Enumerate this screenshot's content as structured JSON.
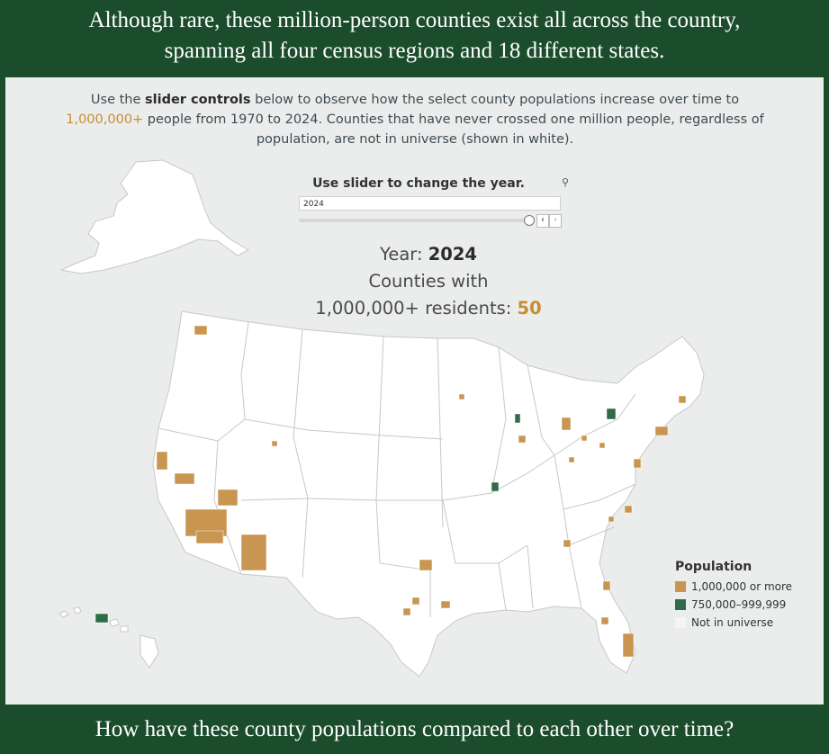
{
  "header": {
    "line1": "Although rare, these million-person counties exist all across the country,",
    "line2": "spanning all four census regions and 18 different states."
  },
  "intro": {
    "part1": "Use the ",
    "bold1": "slider controls",
    "part2": " below to observe how the select county populations increase over time to",
    "accent": "1,000,000+",
    "part3": " people from 1970 to 2024. Counties that have never crossed one million people, regardless of",
    "part4": "population, are not in universe (shown in white)."
  },
  "slider": {
    "title": "Use slider to change the year.",
    "value": "2024",
    "position": 1.0
  },
  "stats": {
    "year_label": "Year: ",
    "year": "2024",
    "line2": "Counties with",
    "line3": "1,000,000+ residents: ",
    "count": "50"
  },
  "legend": {
    "title": "Population",
    "items": [
      {
        "label": "1,000,000 or more",
        "color": "#c89650"
      },
      {
        "label": "750,000–999,999",
        "color": "#2f6b49"
      },
      {
        "label": "Not in universe",
        "color": "#f4f5f4"
      }
    ]
  },
  "footer": {
    "question": "How have these county populations compared to each other over time?"
  },
  "colors": {
    "banner": "#1b4d2c",
    "panel": "#eaedeb",
    "state_fill": "#ffffff",
    "state_border": "#c8c8c8",
    "million": "#c89650",
    "near_million": "#2f6b49"
  },
  "icons": [
    "search-icon",
    "chevron-left-icon",
    "chevron-right-icon"
  ]
}
